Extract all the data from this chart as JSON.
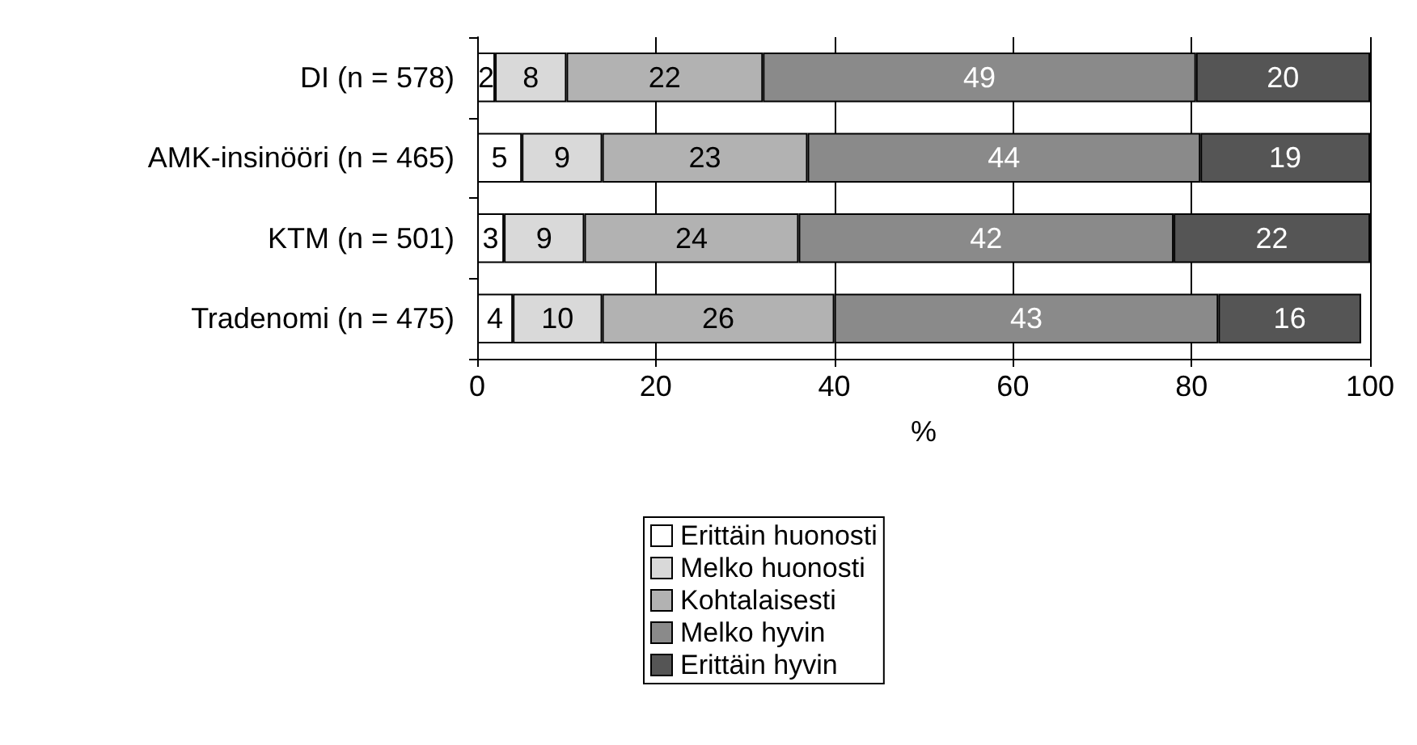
{
  "chart_data": {
    "type": "bar",
    "orientation": "horizontal",
    "stacked": true,
    "categories": [
      "DI (n = 578)",
      "AMK-insinööri (n = 465)",
      "KTM (n = 501)",
      "Tradenomi (n = 475)"
    ],
    "series": [
      {
        "name": "Erittäin huonosti",
        "color": "#ffffff",
        "values": [
          2,
          5,
          3,
          4
        ],
        "value_labels": [
          "2",
          "5",
          "3",
          "4"
        ]
      },
      {
        "name": "Melko huonosti",
        "color": "#d9d9d9",
        "values": [
          8,
          9,
          9,
          10
        ],
        "value_labels": [
          "8",
          "9",
          "9",
          "10"
        ]
      },
      {
        "name": "Kohtalaisesti",
        "color": "#b2b2b2",
        "values": [
          22,
          23,
          24,
          26
        ],
        "value_labels": [
          "22",
          "23",
          "24",
          "26"
        ]
      },
      {
        "name": "Melko hyvin",
        "color": "#8a8a8a",
        "values": [
          48.5,
          44,
          42,
          43
        ],
        "value_labels": [
          "49",
          "44",
          "42",
          "43"
        ]
      },
      {
        "name": "Erittäin hyvin",
        "color": "#555555",
        "values": [
          19.5,
          19,
          22,
          16
        ],
        "value_labels": [
          "20",
          "19",
          "22",
          "16"
        ]
      }
    ],
    "xlabel": "%",
    "xlim": [
      0,
      100
    ],
    "xticks": [
      0,
      20,
      40,
      60,
      80,
      100
    ],
    "grid": "x",
    "legend": "bottom"
  }
}
